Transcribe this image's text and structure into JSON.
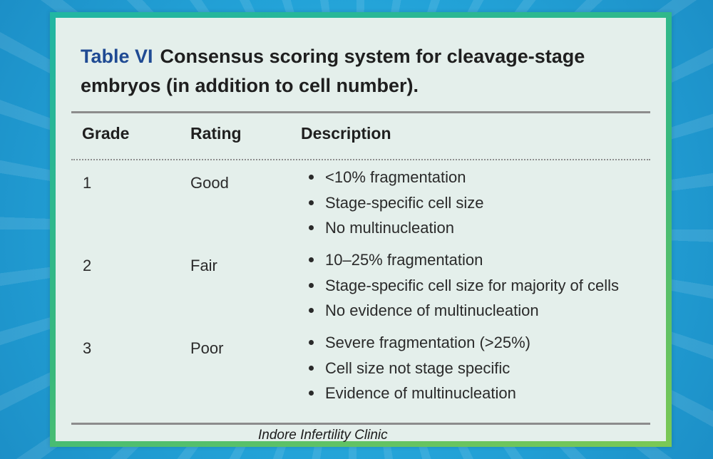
{
  "title": {
    "label": "Table VI",
    "text": "Consensus scoring system for cleavage-stage embryos (in addition to cell number)."
  },
  "table": {
    "headers": [
      "Grade",
      "Rating",
      "Description"
    ],
    "rows": [
      {
        "grade": "1",
        "rating": "Good",
        "description": [
          "<10% fragmentation",
          "Stage-specific cell size",
          "No multinucleation"
        ]
      },
      {
        "grade": "2",
        "rating": "Fair",
        "description": [
          "10–25% fragmentation",
          "Stage-specific cell size for majority of cells",
          "No evidence of multinucleation"
        ]
      },
      {
        "grade": "3",
        "rating": "Poor",
        "description": [
          "Severe fragmentation (>25%)",
          "Cell size not stage specific",
          "Evidence of multinucleation"
        ]
      }
    ]
  },
  "footer": "Indore Infertility Clinic",
  "colors": {
    "background": "#23a3d8",
    "frame": "#39b97c",
    "panel": "#e4efeb",
    "title_label": "#1f4a93"
  }
}
